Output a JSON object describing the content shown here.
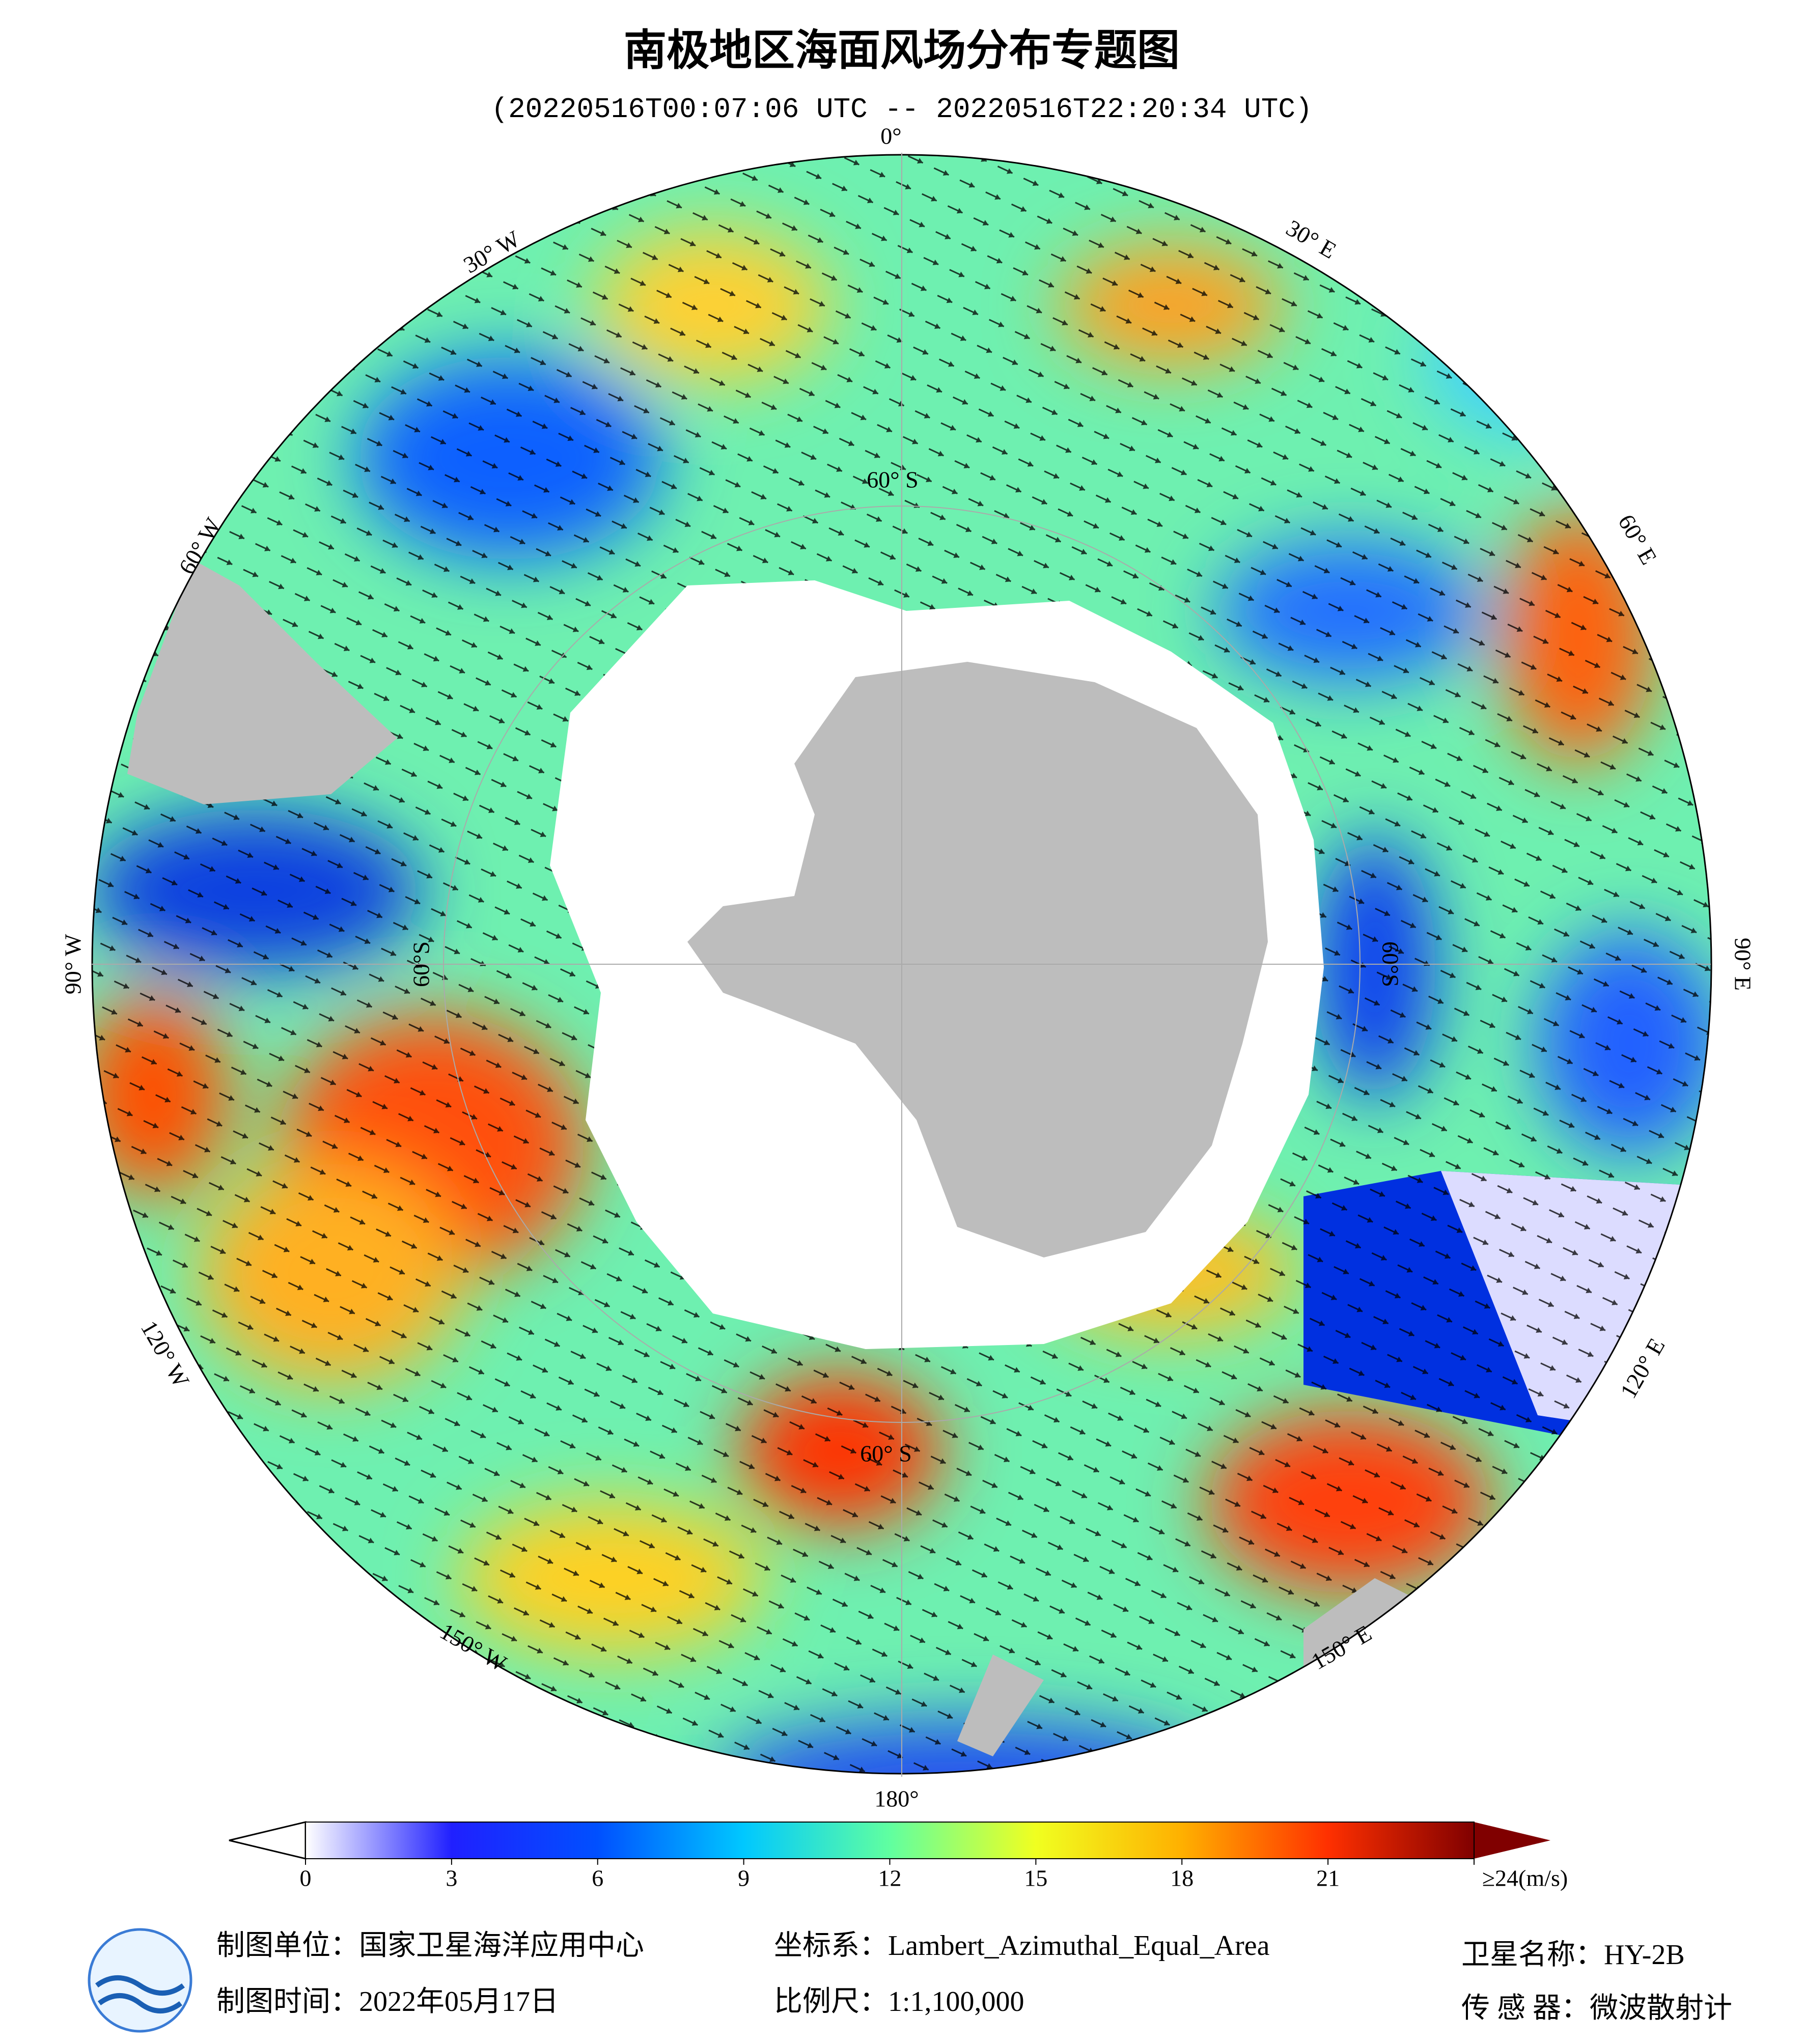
{
  "title": "南极地区海面风场分布专题图",
  "subtitle": "(20220516T00:07:06 UTC -- 20220516T22:20:34 UTC)",
  "map": {
    "longitude_labels": [
      "0°",
      "30° E",
      "60° E",
      "90° E",
      "120° E",
      "150° E",
      "180°",
      "150° W",
      "120° W",
      "90° W",
      "60° W",
      "30° W"
    ],
    "latitude_labels": [
      "60° S",
      "60° S",
      "60°S",
      "60°S"
    ]
  },
  "colorbar": {
    "range": [
      0,
      24
    ],
    "ticks": [
      0,
      3,
      6,
      9,
      12,
      15,
      18,
      21,
      {
        "value": 24,
        "label": "≥24(m/s)"
      }
    ],
    "colors": [
      "#ffffff",
      "#2020ff",
      "#0050ff",
      "#00c8ff",
      "#60ffa0",
      "#f0ff20",
      "#ffb000",
      "#ff3000",
      "#800000"
    ]
  },
  "footer": {
    "unit": "制图单位：国家卫星海洋应用中心",
    "date": "制图时间：2022年05月17日",
    "projection": "坐标系：Lambert_Azimuthal_Equal_Area",
    "scale": "比例尺：1:1,100,000",
    "satellite": "卫星名称：HY-2B",
    "sensor": "传 感 器：微波散射计"
  }
}
